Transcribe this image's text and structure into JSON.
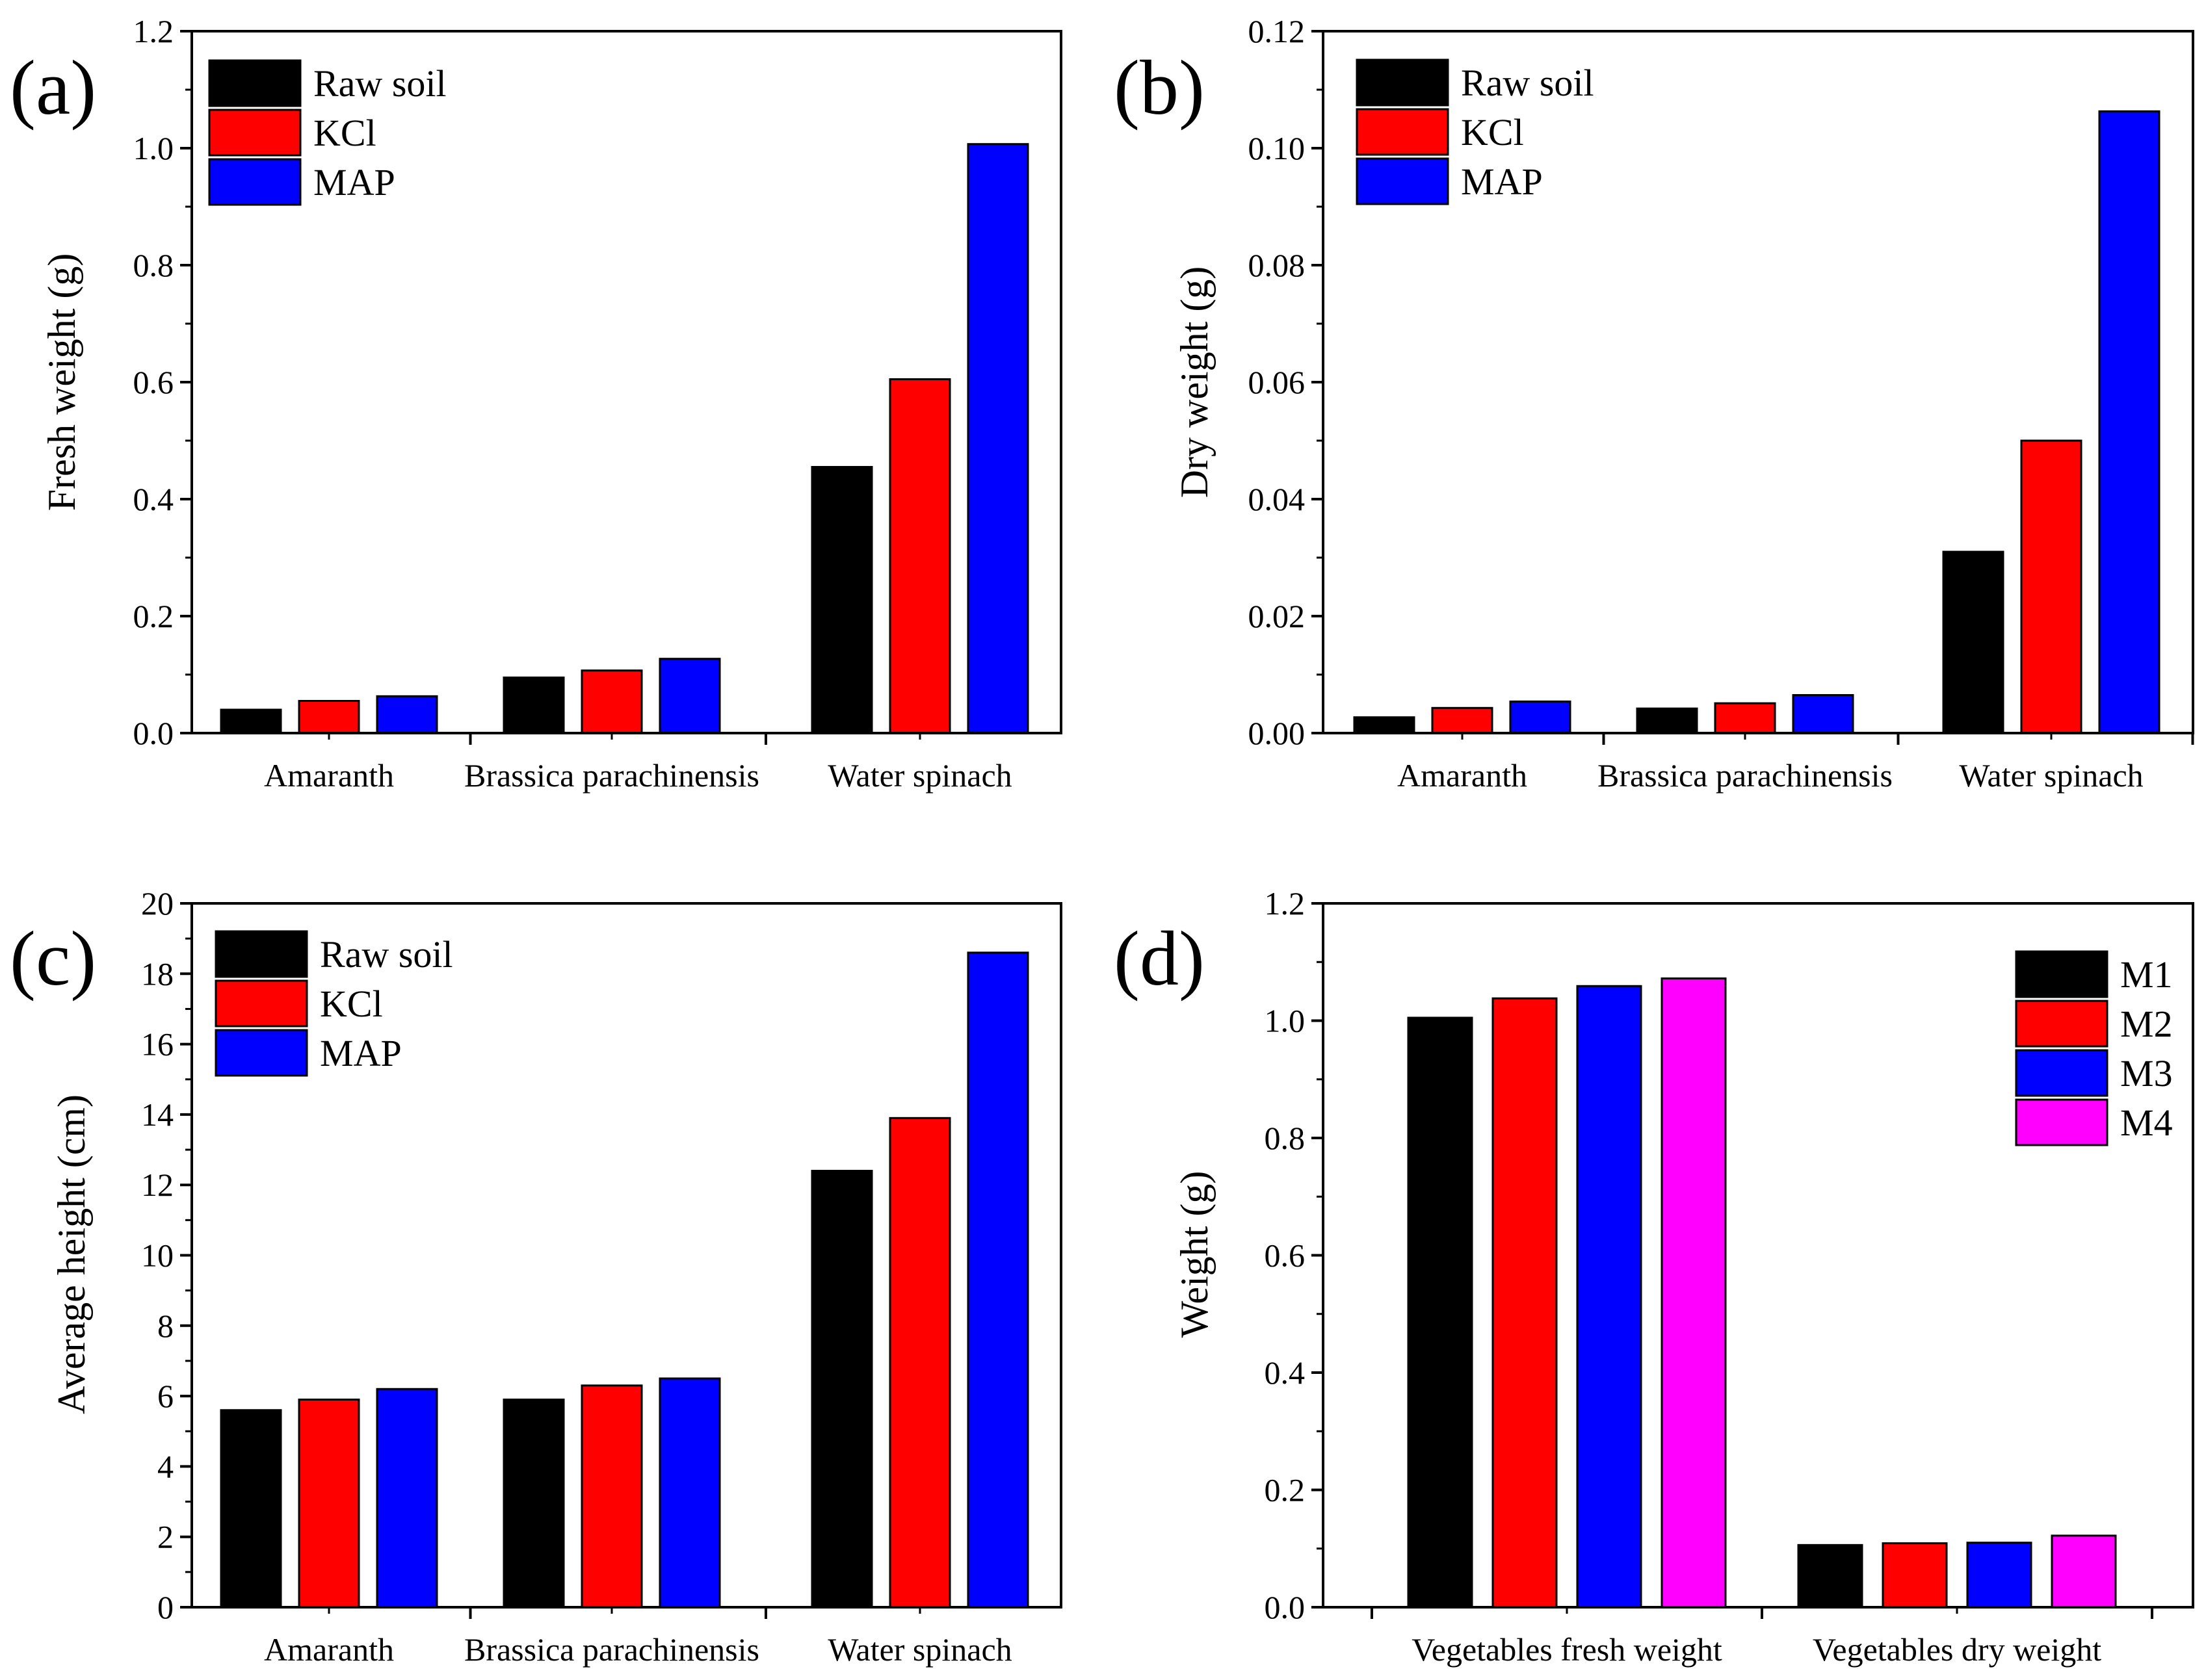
{
  "chart_data": [
    {
      "type": "bar",
      "panel_label": "(a)",
      "title": "",
      "xlabel": "",
      "ylabel": "Fresh weight (g)",
      "categories": [
        "Amaranth",
        "Brassica parachinensis",
        "Water spinach"
      ],
      "series": [
        {
          "name": "Raw soil",
          "color": "#000000",
          "values": [
            0.04,
            0.095,
            0.455
          ]
        },
        {
          "name": "KCl",
          "color": "#ff0000",
          "values": [
            0.055,
            0.107,
            0.605
          ]
        },
        {
          "name": "MAP",
          "color": "#0000ff",
          "values": [
            0.063,
            0.127,
            1.007
          ]
        }
      ],
      "ylim": [
        0,
        1.2
      ],
      "yticks": [
        "0.0",
        "0.2",
        "0.4",
        "0.6",
        "0.8",
        "1.0",
        "1.2"
      ],
      "legend_position": "top-left",
      "grid": false
    },
    {
      "type": "bar",
      "panel_label": "(b)",
      "title": "",
      "xlabel": "",
      "ylabel": "Dry weight (g)",
      "categories": [
        "Amaranth",
        "Brassica parachinensis",
        "Water spinach"
      ],
      "series": [
        {
          "name": "Raw soil",
          "color": "#000000",
          "values": [
            0.0027,
            0.0042,
            0.031
          ]
        },
        {
          "name": "KCl",
          "color": "#ff0000",
          "values": [
            0.0043,
            0.0051,
            0.05
          ]
        },
        {
          "name": "MAP",
          "color": "#0000ff",
          "values": [
            0.0054,
            0.0065,
            0.1063
          ]
        }
      ],
      "ylim": [
        0,
        0.12
      ],
      "yticks": [
        "0.00",
        "0.02",
        "0.04",
        "0.06",
        "0.08",
        "0.10",
        "0.12"
      ],
      "legend_position": "top-left",
      "grid": false
    },
    {
      "type": "bar",
      "panel_label": "(c)",
      "title": "",
      "xlabel": "",
      "ylabel": "Average height (cm)",
      "categories": [
        "Amaranth",
        "Brassica parachinensis",
        "Water spinach"
      ],
      "series": [
        {
          "name": "Raw soil",
          "color": "#000000",
          "values": [
            5.6,
            5.9,
            12.4
          ]
        },
        {
          "name": "KCl",
          "color": "#ff0000",
          "values": [
            5.9,
            6.3,
            13.9
          ]
        },
        {
          "name": "MAP",
          "color": "#0000ff",
          "values": [
            6.2,
            6.5,
            18.6
          ]
        }
      ],
      "ylim": [
        0,
        20
      ],
      "yticks": [
        "0",
        "2",
        "4",
        "6",
        "8",
        "10",
        "12",
        "14",
        "16",
        "18",
        "20"
      ],
      "legend_position": "top-left",
      "grid": false
    },
    {
      "type": "bar",
      "panel_label": "(d)",
      "title": "",
      "xlabel": "",
      "ylabel": "Weight (g)",
      "categories": [
        "Vegetables fresh weight",
        "Vegetables dry weight"
      ],
      "series": [
        {
          "name": "M1",
          "color": "#000000",
          "values": [
            1.005,
            0.106
          ]
        },
        {
          "name": "M2",
          "color": "#ff0000",
          "values": [
            1.038,
            0.109
          ]
        },
        {
          "name": "M3",
          "color": "#0000ff",
          "values": [
            1.059,
            0.11
          ]
        },
        {
          "name": "M4",
          "color": "#ff00ff",
          "values": [
            1.072,
            0.122
          ]
        }
      ],
      "ylim": [
        0,
        1.2
      ],
      "yticks": [
        "0.0",
        "0.2",
        "0.4",
        "0.6",
        "0.8",
        "1.0",
        "1.2"
      ],
      "legend_position": "top-right",
      "grid": false
    }
  ]
}
